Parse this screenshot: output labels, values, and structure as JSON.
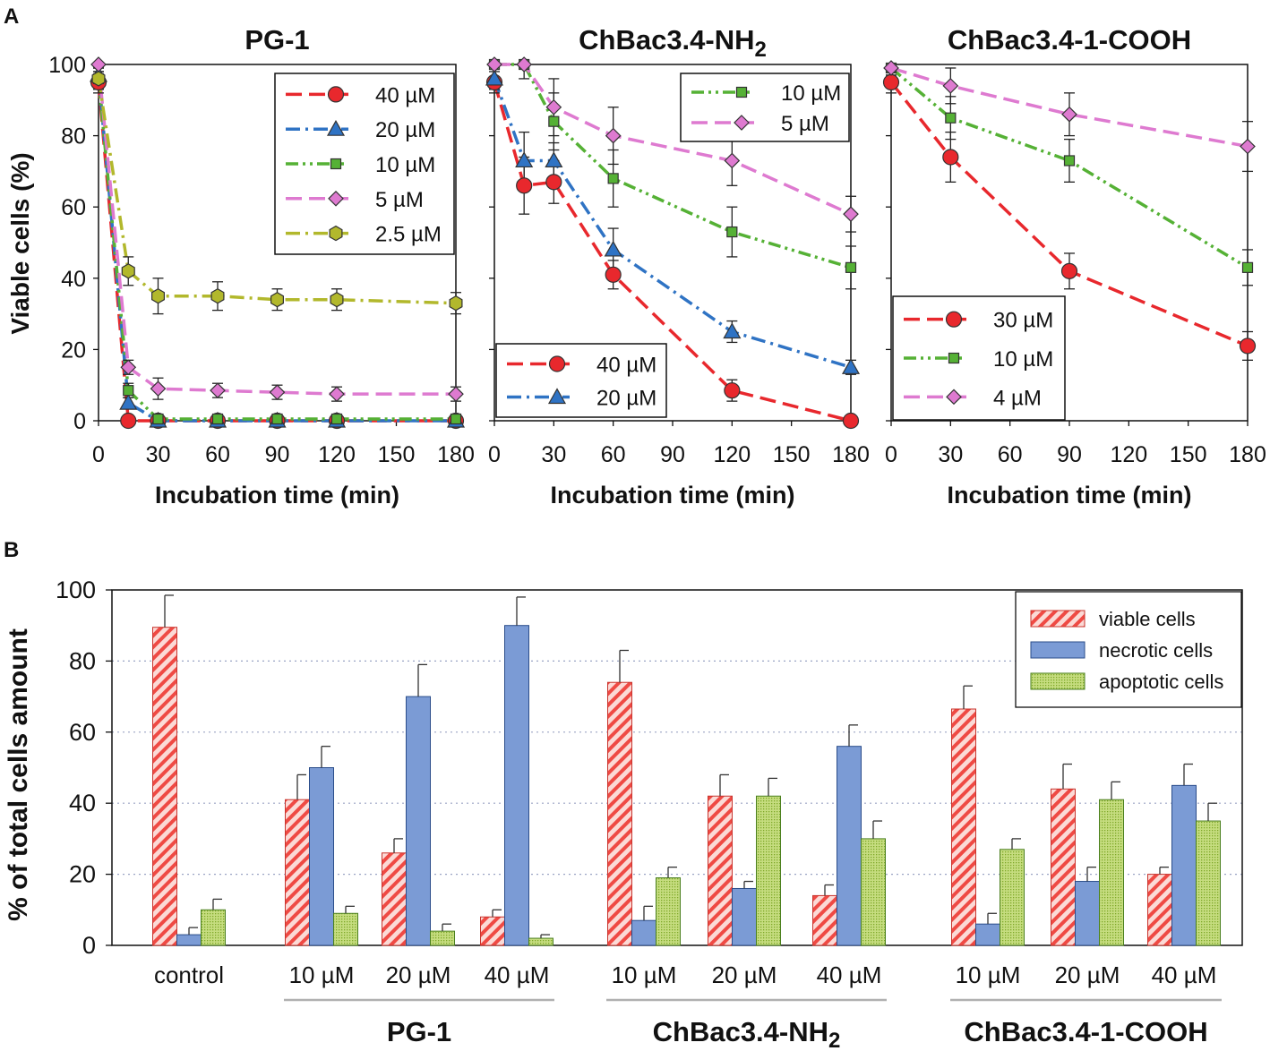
{
  "panel_labels": {
    "a": "A",
    "b": "B"
  },
  "panel_a": {
    "ylabel": "Viable cells (%)",
    "xlabel": "Incubation time (min)",
    "charts": [
      {
        "title": "PG-1",
        "title_sub": "",
        "legend_position": "top-right",
        "series": [
          {
            "name": "40 µM",
            "color": "#e8282d",
            "marker": "circle",
            "dash": "dash",
            "x": [
              0,
              15,
              30,
              60,
              90,
              120,
              180
            ],
            "y": [
              95,
              0,
              0,
              0,
              0,
              0,
              0
            ],
            "err": [
              3,
              0,
              0,
              0,
              0,
              0,
              0
            ]
          },
          {
            "name": "20 µM",
            "color": "#2f73c4",
            "marker": "triangle",
            "dash": "dashdot",
            "x": [
              0,
              15,
              30,
              60,
              90,
              120,
              180
            ],
            "y": [
              97,
              5,
              0,
              0,
              0,
              0,
              0
            ],
            "err": [
              2,
              1.5,
              0,
              0,
              0,
              0,
              0
            ]
          },
          {
            "name": "10 µM",
            "color": "#55b135",
            "marker": "square",
            "dash": "dashdotdot",
            "x": [
              0,
              15,
              30,
              60,
              90,
              120,
              180
            ],
            "y": [
              96,
              8.5,
              0.5,
              0.5,
              0.5,
              0.5,
              0.5
            ],
            "err": [
              3,
              2,
              0.5,
              0.5,
              0.5,
              0.5,
              0.5
            ]
          },
          {
            "name": "5 µM",
            "color": "#de7ad0",
            "marker": "diamond",
            "dash": "dash",
            "x": [
              0,
              15,
              30,
              60,
              90,
              120,
              180
            ],
            "y": [
              100,
              15,
              9,
              8.5,
              8,
              7.5,
              7.5
            ],
            "err": [
              2,
              2,
              3,
              2,
              2,
              2,
              2
            ]
          },
          {
            "name": "2.5 µM",
            "color": "#b2b82c",
            "marker": "hexagon",
            "dash": "dashdot",
            "x": [
              0,
              15,
              30,
              60,
              90,
              120,
              180
            ],
            "y": [
              96,
              42,
              35,
              35,
              34,
              34,
              33
            ],
            "err": [
              3,
              4,
              5,
              4,
              3,
              3,
              3
            ]
          }
        ]
      },
      {
        "title": "ChBac3.4-NH",
        "title_sub": "2",
        "legend_position": "top-right and bottom-left",
        "series": [
          {
            "name": "40 µM",
            "color": "#e8282d",
            "marker": "circle",
            "dash": "dash",
            "legend_at": "bottom",
            "x": [
              0,
              15,
              30,
              60,
              120,
              180
            ],
            "y": [
              95,
              66,
              67,
              41,
              8.5,
              0
            ],
            "err": [
              3,
              8,
              6,
              4,
              3,
              0
            ]
          },
          {
            "name": "20 µM",
            "color": "#2f73c4",
            "marker": "triangle",
            "dash": "dashdot",
            "legend_at": "bottom",
            "x": [
              0,
              15,
              30,
              60,
              120,
              180
            ],
            "y": [
              96,
              73,
              73,
              48,
              25,
              15
            ],
            "err": [
              3,
              8,
              5,
              6,
              3,
              2
            ]
          },
          {
            "name": "10 µM",
            "color": "#55b135",
            "marker": "square",
            "dash": "dashdotdot",
            "legend_at": "top",
            "x": [
              0,
              15,
              30,
              60,
              120,
              180
            ],
            "y": [
              100,
              100,
              84,
              68,
              53,
              43
            ],
            "err": [
              1,
              1,
              8,
              8,
              7,
              6
            ]
          },
          {
            "name": "5 µM",
            "color": "#de7ad0",
            "marker": "diamond",
            "dash": "dash",
            "legend_at": "top",
            "x": [
              0,
              15,
              30,
              60,
              120,
              180
            ],
            "y": [
              100,
              100,
              88,
              80,
              73,
              58
            ],
            "err": [
              1,
              4,
              8,
              8,
              7,
              5
            ]
          }
        ]
      },
      {
        "title": "ChBac3.4-1-COOH",
        "title_sub": "",
        "legend_position": "bottom-left",
        "series": [
          {
            "name": "30 µM",
            "color": "#e8282d",
            "marker": "circle",
            "dash": "dash",
            "x": [
              0,
              30,
              90,
              180
            ],
            "y": [
              95,
              74,
              42,
              21
            ],
            "err": [
              3,
              7,
              5,
              4
            ]
          },
          {
            "name": "10 µM",
            "color": "#55b135",
            "marker": "square",
            "dash": "dashdotdot",
            "x": [
              0,
              30,
              90,
              180
            ],
            "y": [
              99,
              85,
              73,
              43
            ],
            "err": [
              2,
              6,
              6,
              5
            ]
          },
          {
            "name": "4 µM",
            "color": "#de7ad0",
            "marker": "diamond",
            "dash": "dash",
            "x": [
              0,
              30,
              90,
              180
            ],
            "y": [
              99,
              94,
              86,
              77
            ],
            "err": [
              2,
              5,
              6,
              7
            ]
          }
        ]
      }
    ]
  },
  "chart_data": {
    "type": "bar",
    "ylabel": "% of total cells amount",
    "ylim": [
      0,
      100
    ],
    "yticks": [
      0,
      20,
      40,
      60,
      80,
      100
    ],
    "grid": true,
    "legend_position": "top-right",
    "categories": [
      "control",
      "10 µM",
      "20 µM",
      "40 µM",
      "10 µM",
      "20 µM",
      "40 µM",
      "10 µM",
      "20 µM",
      "40 µM"
    ],
    "groups": [
      {
        "label": "PG-1",
        "label_sub": "",
        "from": 1,
        "to": 3
      },
      {
        "label": "ChBac3.4-NH",
        "label_sub": "2",
        "from": 4,
        "to": 6
      },
      {
        "label": "ChBac3.4-1-COOH",
        "label_sub": "",
        "from": 7,
        "to": 9
      }
    ],
    "series": [
      {
        "name": "viable cells",
        "color": "#f47f7b",
        "pattern": "hatch",
        "values": [
          89.5,
          41,
          26,
          8,
          74,
          42,
          14,
          66.5,
          44,
          20
        ],
        "err": [
          9,
          7,
          4,
          2,
          9,
          6,
          3,
          6.5,
          7,
          2
        ]
      },
      {
        "name": "necrotic cells",
        "color": "#7b9bd5",
        "pattern": "solid",
        "values": [
          3,
          50,
          70,
          90,
          7,
          16,
          56,
          6,
          18,
          45
        ],
        "err": [
          2,
          6,
          9,
          8,
          4,
          2,
          6,
          3,
          4,
          6
        ]
      },
      {
        "name": "apoptotic cells",
        "color": "#9bc94a",
        "pattern": "dots",
        "values": [
          10,
          9,
          4,
          2,
          19,
          42,
          30,
          27,
          41,
          35
        ],
        "err": [
          3,
          2,
          2,
          1,
          3,
          5,
          5,
          3,
          5,
          5
        ]
      }
    ]
  }
}
